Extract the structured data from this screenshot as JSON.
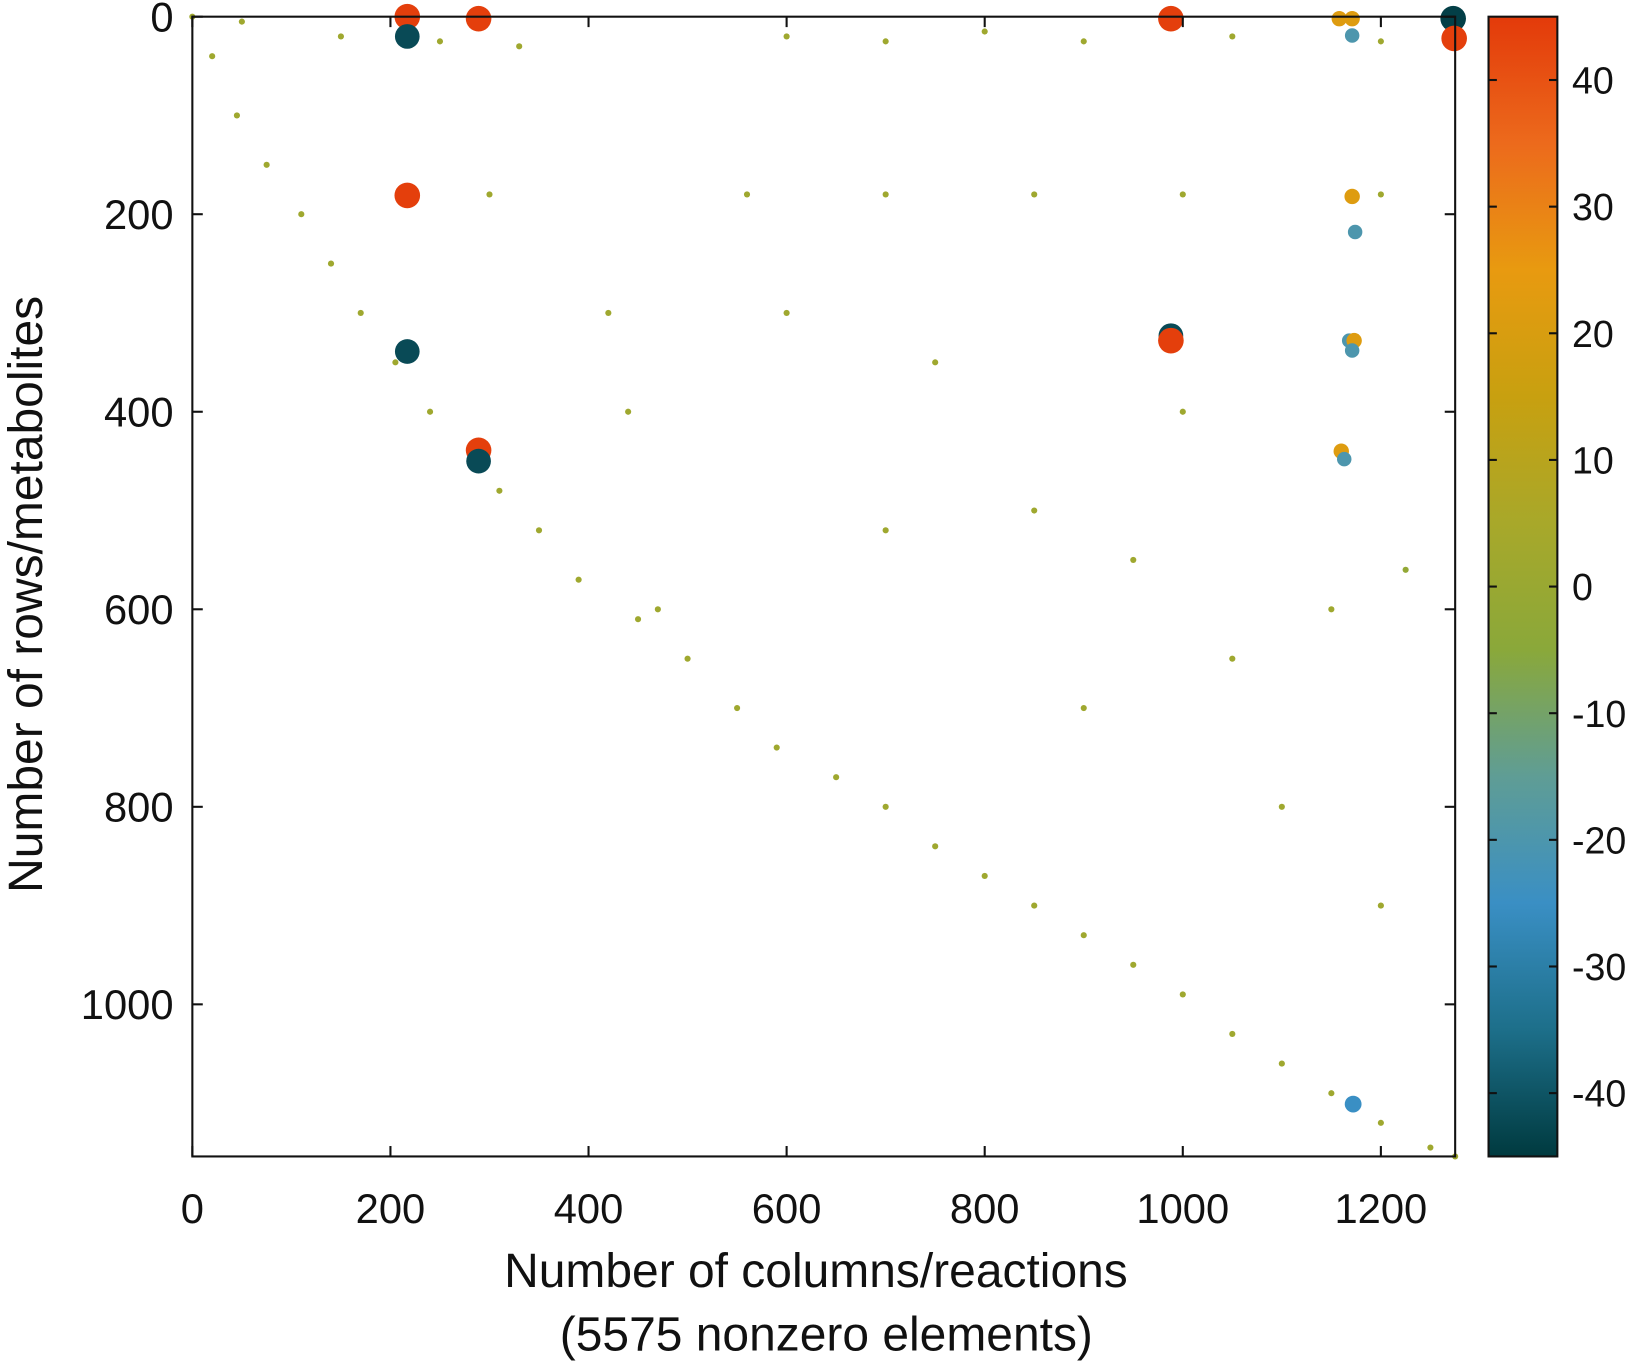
{
  "chart_data": {
    "type": "scatter",
    "xlabel": "Number of columns/reactions",
    "xlabel_note": "(5575 nonzero elements)",
    "ylabel": "Number of rows/metabolites",
    "xlim": [
      0,
      1275
    ],
    "ylim": [
      0,
      1154
    ],
    "y_reversed": true,
    "xticks": [
      0,
      200,
      400,
      600,
      800,
      1000,
      1200
    ],
    "yticks": [
      0,
      200,
      400,
      600,
      800,
      1000
    ],
    "clim": [
      -45,
      45
    ],
    "cticks": [
      -40,
      -30,
      -20,
      -10,
      0,
      10,
      20,
      30,
      40
    ],
    "colormap": [
      "#003a3f",
      "#1d6f8a",
      "#3a8fc4",
      "#5f9d95",
      "#8aa83a",
      "#a8a82a",
      "#c8a010",
      "#e89a10",
      "#ec6a1c",
      "#e33a0a"
    ],
    "x": [
      0,
      20,
      45,
      75,
      110,
      140,
      170,
      205,
      240,
      280,
      310,
      350,
      390,
      450,
      500,
      550,
      590,
      650,
      700,
      750,
      800,
      850,
      900,
      950,
      1000,
      1050,
      1100,
      1150,
      1200,
      1250,
      1275,
      420,
      440,
      470,
      50,
      150,
      250,
      330,
      600,
      700,
      800,
      900,
      1050,
      1200,
      300,
      560,
      700,
      850,
      1000,
      1200,
      600,
      750,
      850,
      950,
      1050,
      900,
      1100,
      1200,
      700,
      1000,
      1150,
      1225,
      217,
      289,
      988,
      1273,
      1274,
      217,
      1158,
      1171,
      1171,
      217,
      1171,
      1174,
      217,
      988,
      988,
      1168,
      1173,
      1171,
      289,
      289,
      1160,
      1163,
      1172
    ],
    "y": [
      0,
      40,
      100,
      150,
      200,
      250,
      300,
      350,
      400,
      440,
      480,
      520,
      570,
      610,
      650,
      700,
      740,
      770,
      800,
      840,
      870,
      900,
      930,
      960,
      990,
      1030,
      1060,
      1090,
      1120,
      1145,
      1154,
      300,
      400,
      600,
      5,
      20,
      25,
      30,
      20,
      25,
      15,
      25,
      20,
      25,
      180,
      180,
      180,
      180,
      180,
      180,
      300,
      350,
      500,
      550,
      650,
      700,
      800,
      900,
      520,
      400,
      600,
      560,
      0,
      2,
      2,
      2,
      22,
      20,
      2,
      2,
      19,
      181,
      182,
      218,
      339,
      323,
      328,
      328,
      328,
      338,
      439,
      450,
      440,
      448,
      1101
    ],
    "values": [
      2,
      2,
      2,
      2,
      2,
      2,
      2,
      2,
      2,
      2,
      2,
      2,
      2,
      2,
      2,
      2,
      2,
      2,
      2,
      2,
      2,
      2,
      2,
      2,
      2,
      2,
      2,
      2,
      2,
      2,
      2,
      2,
      2,
      2,
      2,
      2,
      2,
      2,
      2,
      2,
      2,
      2,
      2,
      2,
      2,
      2,
      2,
      2,
      2,
      2,
      2,
      2,
      2,
      2,
      2,
      2,
      2,
      2,
      2,
      2,
      2,
      -2,
      44,
      44,
      44,
      -44,
      44,
      -42,
      22,
      22,
      -20,
      44,
      22,
      -20,
      -42,
      -42,
      44,
      -20,
      22,
      -20,
      44,
      -42,
      22,
      -20,
      -25
    ]
  }
}
